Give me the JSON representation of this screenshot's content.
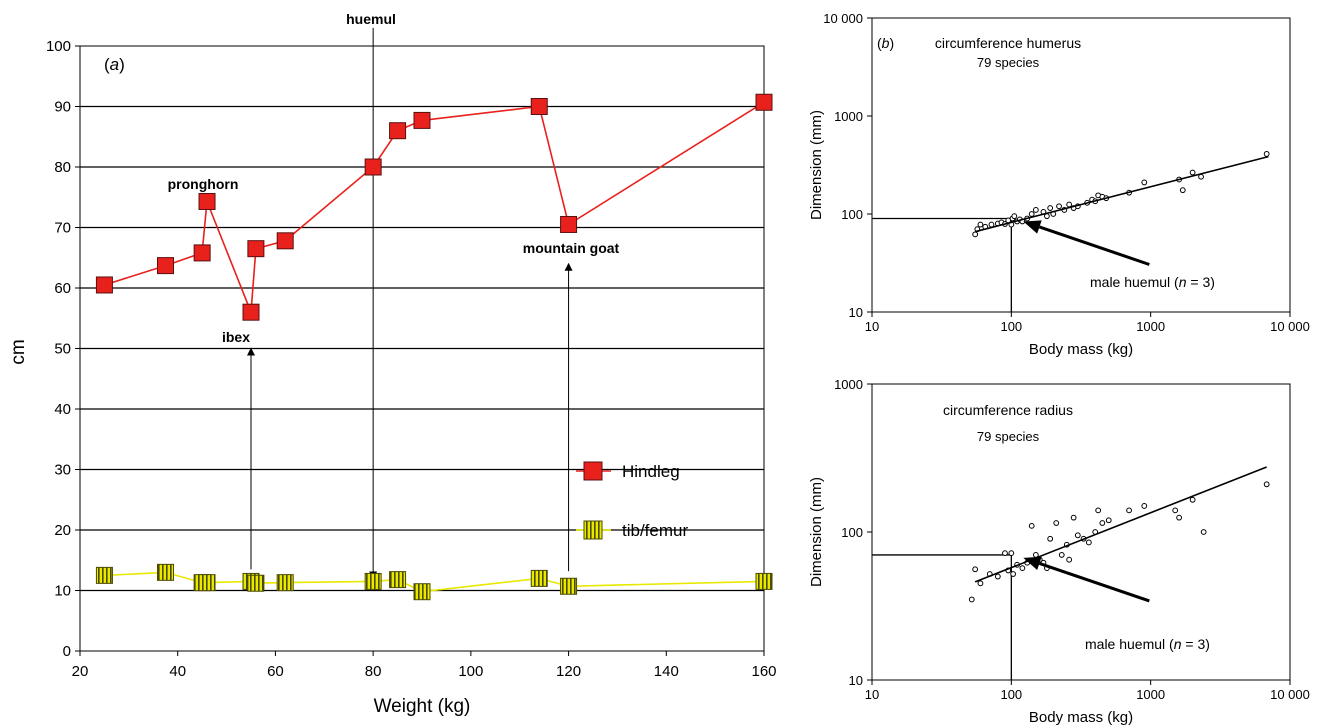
{
  "chart_data": [
    {
      "panel_label": "(a)",
      "type": "line",
      "xlabel": "Weight (kg)",
      "ylabel": "cm",
      "xlim": [
        20,
        160
      ],
      "ylim": [
        0,
        100
      ],
      "x_ticks": [
        "20",
        "40",
        "60",
        "80",
        "100",
        "120",
        "140",
        "160"
      ],
      "y_ticks": [
        "0",
        "10",
        "20",
        "30",
        "40",
        "50",
        "60",
        "70",
        "80",
        "90",
        "100"
      ],
      "grid": "horizontal",
      "legend_position": "right",
      "series": [
        {
          "name": "Hindleg",
          "color": "#e8211d",
          "marker": "square",
          "points": [
            {
              "x": 25,
              "y": 60.5
            },
            {
              "x": 37.5,
              "y": 63.7
            },
            {
              "x": 45,
              "y": 65.8
            },
            {
              "x": 46,
              "y": 74.3
            },
            {
              "x": 55,
              "y": 56
            },
            {
              "x": 56,
              "y": 66.5
            },
            {
              "x": 62,
              "y": 67.8
            },
            {
              "x": 80,
              "y": 80
            },
            {
              "x": 85,
              "y": 86
            },
            {
              "x": 90,
              "y": 87.7
            },
            {
              "x": 114,
              "y": 90
            },
            {
              "x": 120,
              "y": 70.5
            },
            {
              "x": 160,
              "y": 90.7
            }
          ]
        },
        {
          "name": "tib/femur",
          "color": "#e8e800",
          "marker": "striped-square",
          "points": [
            {
              "x": 25,
              "y": 12.5
            },
            {
              "x": 37.5,
              "y": 13
            },
            {
              "x": 45,
              "y": 11.3
            },
            {
              "x": 46,
              "y": 11.3
            },
            {
              "x": 55,
              "y": 11.5
            },
            {
              "x": 56,
              "y": 11.2
            },
            {
              "x": 62,
              "y": 11.3
            },
            {
              "x": 80,
              "y": 11.5
            },
            {
              "x": 85,
              "y": 11.8
            },
            {
              "x": 90,
              "y": 9.8
            },
            {
              "x": 114,
              "y": 12
            },
            {
              "x": 120,
              "y": 10.7
            },
            {
              "x": 160,
              "y": 11.5
            }
          ]
        }
      ],
      "annotations": [
        {
          "label": "huemul",
          "x": 80
        },
        {
          "label": "pronghorn",
          "x": 46
        },
        {
          "label": "ibex",
          "x": 55
        },
        {
          "label": "mountain goat",
          "x": 120
        }
      ]
    },
    {
      "panel_label": "(b)",
      "type": "scatter",
      "title": "circumference humerus",
      "subtitle": "79 species",
      "xlabel": "Body mass (kg)",
      "ylabel": "Dimension (mm)",
      "x_scale": "log",
      "y_scale": "log",
      "xlim": [
        10,
        10000
      ],
      "ylim": [
        10,
        10000
      ],
      "x_ticks": [
        "10",
        "100",
        "1000",
        "10 000"
      ],
      "y_ticks": [
        "10",
        "100",
        "1000",
        "10 000"
      ],
      "annotation": {
        "prefix": "male huemul (",
        "n_label": "n",
        "suffix": " = 3)",
        "x": 100,
        "y": 90
      },
      "regression_line": [
        {
          "x": 55,
          "y": 66
        },
        {
          "x": 7000,
          "y": 385
        }
      ],
      "points": [
        {
          "x": 55,
          "y": 62
        },
        {
          "x": 57,
          "y": 70
        },
        {
          "x": 60,
          "y": 78
        },
        {
          "x": 65,
          "y": 74
        },
        {
          "x": 72,
          "y": 78
        },
        {
          "x": 80,
          "y": 80
        },
        {
          "x": 85,
          "y": 82
        },
        {
          "x": 90,
          "y": 79
        },
        {
          "x": 95,
          "y": 86
        },
        {
          "x": 100,
          "y": 78
        },
        {
          "x": 102,
          "y": 90
        },
        {
          "x": 105,
          "y": 95
        },
        {
          "x": 110,
          "y": 84
        },
        {
          "x": 115,
          "y": 88
        },
        {
          "x": 120,
          "y": 84
        },
        {
          "x": 130,
          "y": 90
        },
        {
          "x": 140,
          "y": 100
        },
        {
          "x": 150,
          "y": 110
        },
        {
          "x": 170,
          "y": 105
        },
        {
          "x": 180,
          "y": 95
        },
        {
          "x": 190,
          "y": 115
        },
        {
          "x": 200,
          "y": 100
        },
        {
          "x": 220,
          "y": 120
        },
        {
          "x": 240,
          "y": 110
        },
        {
          "x": 260,
          "y": 125
        },
        {
          "x": 280,
          "y": 115
        },
        {
          "x": 300,
          "y": 120
        },
        {
          "x": 350,
          "y": 130
        },
        {
          "x": 380,
          "y": 140
        },
        {
          "x": 400,
          "y": 135
        },
        {
          "x": 420,
          "y": 155
        },
        {
          "x": 450,
          "y": 150
        },
        {
          "x": 480,
          "y": 145
        },
        {
          "x": 700,
          "y": 165
        },
        {
          "x": 900,
          "y": 210
        },
        {
          "x": 1600,
          "y": 225
        },
        {
          "x": 1700,
          "y": 175
        },
        {
          "x": 2000,
          "y": 265
        },
        {
          "x": 2300,
          "y": 240
        },
        {
          "x": 6800,
          "y": 410
        }
      ]
    },
    {
      "type": "scatter",
      "title": "circumference radius",
      "subtitle": "79 species",
      "xlabel": "Body mass (kg)",
      "ylabel": "Dimension (mm)",
      "x_scale": "log",
      "y_scale": "log",
      "xlim": [
        10,
        10000
      ],
      "ylim": [
        10,
        1000
      ],
      "x_ticks": [
        "10",
        "100",
        "1000",
        "10 000"
      ],
      "y_ticks": [
        "10",
        "100",
        "1000"
      ],
      "annotation": {
        "prefix": "male huemul (",
        "n_label": "n",
        "suffix": " = 3)",
        "x": 100,
        "y": 70
      },
      "regression_line": [
        {
          "x": 55,
          "y": 46
        },
        {
          "x": 6800,
          "y": 275
        }
      ],
      "points": [
        {
          "x": 52,
          "y": 35
        },
        {
          "x": 55,
          "y": 56
        },
        {
          "x": 60,
          "y": 45
        },
        {
          "x": 70,
          "y": 52
        },
        {
          "x": 80,
          "y": 50
        },
        {
          "x": 90,
          "y": 72
        },
        {
          "x": 95,
          "y": 55
        },
        {
          "x": 100,
          "y": 72
        },
        {
          "x": 103,
          "y": 52
        },
        {
          "x": 110,
          "y": 60
        },
        {
          "x": 120,
          "y": 57
        },
        {
          "x": 130,
          "y": 62
        },
        {
          "x": 140,
          "y": 110
        },
        {
          "x": 150,
          "y": 70
        },
        {
          "x": 160,
          "y": 65
        },
        {
          "x": 170,
          "y": 62
        },
        {
          "x": 180,
          "y": 57
        },
        {
          "x": 190,
          "y": 90
        },
        {
          "x": 210,
          "y": 115
        },
        {
          "x": 230,
          "y": 70
        },
        {
          "x": 250,
          "y": 82
        },
        {
          "x": 260,
          "y": 65
        },
        {
          "x": 280,
          "y": 125
        },
        {
          "x": 300,
          "y": 95
        },
        {
          "x": 330,
          "y": 90
        },
        {
          "x": 360,
          "y": 85
        },
        {
          "x": 400,
          "y": 100
        },
        {
          "x": 420,
          "y": 140
        },
        {
          "x": 450,
          "y": 115
        },
        {
          "x": 500,
          "y": 120
        },
        {
          "x": 700,
          "y": 140
        },
        {
          "x": 900,
          "y": 150
        },
        {
          "x": 1500,
          "y": 140
        },
        {
          "x": 1600,
          "y": 125
        },
        {
          "x": 2000,
          "y": 165
        },
        {
          "x": 2400,
          "y": 100
        },
        {
          "x": 6800,
          "y": 210
        }
      ]
    }
  ]
}
